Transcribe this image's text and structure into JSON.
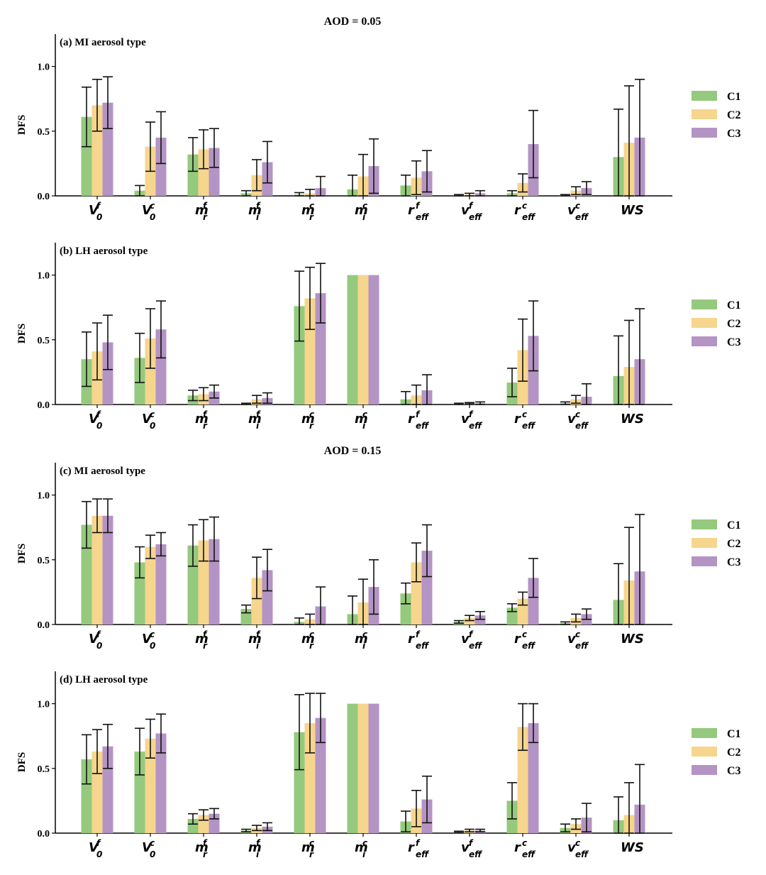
{
  "figure": {
    "header_top": "AOD = 0.05",
    "header_mid": "AOD = 0.15"
  },
  "colors": {
    "C1": "#95c97d",
    "C2": "#f6d58d",
    "C3": "#b494c4",
    "axis": "#000000",
    "error": "#111111"
  },
  "legend": [
    "C1",
    "C2",
    "C3"
  ],
  "x_categories": [
    {
      "base": "V",
      "sup": "f",
      "sub": "0"
    },
    {
      "base": "V",
      "sup": "c",
      "sub": "0"
    },
    {
      "base": "m",
      "sup": "f",
      "sub": "r"
    },
    {
      "base": "m",
      "sup": "f",
      "sub": "i"
    },
    {
      "base": "m",
      "sup": "c",
      "sub": "r"
    },
    {
      "base": "m",
      "sup": "c",
      "sub": "i"
    },
    {
      "base": "r",
      "sup": "f",
      "sub": "eff"
    },
    {
      "base": "v",
      "sup": "f",
      "sub": "eff"
    },
    {
      "base": "r",
      "sup": "c",
      "sub": "eff"
    },
    {
      "base": "v",
      "sup": "c",
      "sub": "eff"
    },
    {
      "base": "WS",
      "sup": "",
      "sub": ""
    }
  ],
  "chart_data": [
    {
      "type": "bar",
      "title": "(a) MI aerosol type",
      "ylabel": "DFS",
      "ylim": [
        0,
        1.25
      ],
      "yticks": [
        "0.0",
        "0.5",
        "1.0"
      ],
      "categories": [
        "V0f",
        "V0c",
        "mrf",
        "mif",
        "mrc",
        "mic",
        "refff",
        "vefff",
        "reffc",
        "veffc",
        "WS"
      ],
      "series": [
        {
          "name": "C1",
          "values": [
            0.61,
            0.04,
            0.32,
            0.02,
            0.01,
            0.05,
            0.08,
            0.005,
            0.02,
            0.005,
            0.3
          ],
          "err": [
            0.23,
            0.04,
            0.13,
            0.02,
            0.015,
            0.11,
            0.08,
            0.005,
            0.02,
            0.005,
            0.37
          ]
        },
        {
          "name": "C2",
          "values": [
            0.7,
            0.38,
            0.36,
            0.16,
            0.02,
            0.15,
            0.14,
            0.01,
            0.1,
            0.04,
            0.41
          ],
          "err": [
            0.2,
            0.19,
            0.15,
            0.12,
            0.03,
            0.17,
            0.13,
            0.01,
            0.07,
            0.03,
            0.44
          ]
        },
        {
          "name": "C3",
          "values": [
            0.72,
            0.45,
            0.37,
            0.26,
            0.06,
            0.23,
            0.19,
            0.02,
            0.4,
            0.06,
            0.45
          ],
          "err": [
            0.2,
            0.2,
            0.15,
            0.16,
            0.09,
            0.21,
            0.16,
            0.02,
            0.26,
            0.05,
            0.45
          ]
        }
      ]
    },
    {
      "type": "bar",
      "title": "(b) LH aerosol type",
      "ylabel": "DFS",
      "ylim": [
        0,
        1.25
      ],
      "yticks": [
        "0.0",
        "0.5",
        "1.0"
      ],
      "categories": [
        "V0f",
        "V0c",
        "mrf",
        "mif",
        "mrc",
        "mic",
        "refff",
        "vefff",
        "reffc",
        "veffc",
        "WS"
      ],
      "series": [
        {
          "name": "C1",
          "values": [
            0.35,
            0.36,
            0.07,
            0.005,
            0.76,
            1.0,
            0.04,
            0.005,
            0.17,
            0.01,
            0.22
          ],
          "err": [
            0.21,
            0.19,
            0.04,
            0.005,
            0.27,
            0.0,
            0.06,
            0.005,
            0.11,
            0.01,
            0.31
          ]
        },
        {
          "name": "C2",
          "values": [
            0.41,
            0.51,
            0.08,
            0.04,
            0.82,
            1.0,
            0.07,
            0.01,
            0.42,
            0.04,
            0.29
          ],
          "err": [
            0.22,
            0.23,
            0.05,
            0.03,
            0.24,
            0.0,
            0.08,
            0.005,
            0.24,
            0.03,
            0.36
          ]
        },
        {
          "name": "C3",
          "values": [
            0.48,
            0.58,
            0.1,
            0.05,
            0.86,
            1.0,
            0.11,
            0.01,
            0.53,
            0.06,
            0.35
          ],
          "err": [
            0.21,
            0.22,
            0.05,
            0.04,
            0.23,
            0.0,
            0.12,
            0.01,
            0.27,
            0.1,
            0.39
          ]
        }
      ]
    },
    {
      "type": "bar",
      "title": "(c) MI aerosol type",
      "ylabel": "DFS",
      "ylim": [
        0,
        1.25
      ],
      "yticks": [
        "0.0",
        "0.5",
        "1.0"
      ],
      "categories": [
        "V0f",
        "V0c",
        "mrf",
        "mif",
        "mrc",
        "mic",
        "refff",
        "vefff",
        "reffc",
        "veffc",
        "WS"
      ],
      "series": [
        {
          "name": "C1",
          "values": [
            0.77,
            0.48,
            0.61,
            0.12,
            0.02,
            0.08,
            0.24,
            0.02,
            0.13,
            0.01,
            0.19
          ],
          "err": [
            0.18,
            0.12,
            0.16,
            0.03,
            0.03,
            0.14,
            0.08,
            0.01,
            0.03,
            0.01,
            0.28
          ]
        },
        {
          "name": "C2",
          "values": [
            0.84,
            0.6,
            0.65,
            0.36,
            0.04,
            0.17,
            0.48,
            0.05,
            0.2,
            0.05,
            0.34
          ],
          "err": [
            0.13,
            0.09,
            0.16,
            0.16,
            0.04,
            0.18,
            0.15,
            0.02,
            0.05,
            0.03,
            0.41
          ]
        },
        {
          "name": "C3",
          "values": [
            0.84,
            0.62,
            0.66,
            0.42,
            0.14,
            0.29,
            0.57,
            0.07,
            0.36,
            0.08,
            0.41
          ],
          "err": [
            0.13,
            0.09,
            0.17,
            0.16,
            0.15,
            0.21,
            0.2,
            0.03,
            0.15,
            0.04,
            0.44
          ]
        }
      ]
    },
    {
      "type": "bar",
      "title": "(d) LH aerosol type",
      "ylabel": "DFS",
      "ylim": [
        0,
        1.25
      ],
      "yticks": [
        "0.0",
        "0.5",
        "1.0"
      ],
      "categories": [
        "V0f",
        "V0c",
        "mrf",
        "mif",
        "mrc",
        "mic",
        "refff",
        "vefff",
        "reffc",
        "veffc",
        "WS"
      ],
      "series": [
        {
          "name": "C1",
          "values": [
            0.57,
            0.63,
            0.11,
            0.02,
            0.78,
            1.0,
            0.09,
            0.01,
            0.25,
            0.04,
            0.1
          ],
          "err": [
            0.19,
            0.18,
            0.04,
            0.01,
            0.29,
            0.0,
            0.08,
            0.005,
            0.14,
            0.03,
            0.18
          ]
        },
        {
          "name": "C2",
          "values": [
            0.63,
            0.73,
            0.14,
            0.04,
            0.85,
            1.0,
            0.19,
            0.02,
            0.82,
            0.07,
            0.14
          ],
          "err": [
            0.17,
            0.15,
            0.04,
            0.02,
            0.23,
            0.0,
            0.14,
            0.01,
            0.18,
            0.04,
            0.25
          ]
        },
        {
          "name": "C3",
          "values": [
            0.67,
            0.77,
            0.15,
            0.05,
            0.89,
            1.0,
            0.26,
            0.02,
            0.85,
            0.12,
            0.22
          ],
          "err": [
            0.17,
            0.15,
            0.04,
            0.03,
            0.19,
            0.0,
            0.18,
            0.01,
            0.15,
            0.11,
            0.31
          ]
        }
      ]
    }
  ]
}
